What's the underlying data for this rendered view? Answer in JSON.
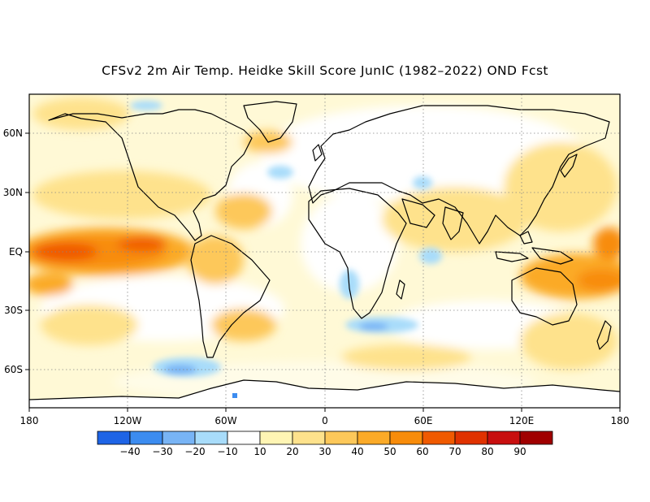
{
  "title": "CFSv2 2m Air Temp. Heidke Skill Score JunIC (1982–2022) OND Fcst",
  "map": {
    "lat_labels": [
      "60N",
      "30N",
      "EQ",
      "30S",
      "60S"
    ],
    "lon_labels": [
      "180",
      "120W",
      "60W",
      "0",
      "60E",
      "120E",
      "180"
    ]
  },
  "colorbar": {
    "bins": [
      {
        "color": "#1e64e6",
        "label": ""
      },
      {
        "color": "#3c8cf0",
        "label": "−40"
      },
      {
        "color": "#78b4f5",
        "label": "−30"
      },
      {
        "color": "#a8dcfa",
        "label": "−20"
      },
      {
        "color": "#ffffff",
        "label": "−10"
      },
      {
        "color": "#fff5b4",
        "label": "10"
      },
      {
        "color": "#fee28c",
        "label": "20"
      },
      {
        "color": "#fdc85a",
        "label": "30"
      },
      {
        "color": "#fbaa28",
        "label": "40"
      },
      {
        "color": "#f88c0a",
        "label": "50"
      },
      {
        "color": "#f05a00",
        "label": "60"
      },
      {
        "color": "#e03200",
        "label": "70"
      },
      {
        "color": "#c80f0f",
        "label": "80"
      },
      {
        "color": "#a00000",
        "label": "90"
      }
    ]
  }
}
